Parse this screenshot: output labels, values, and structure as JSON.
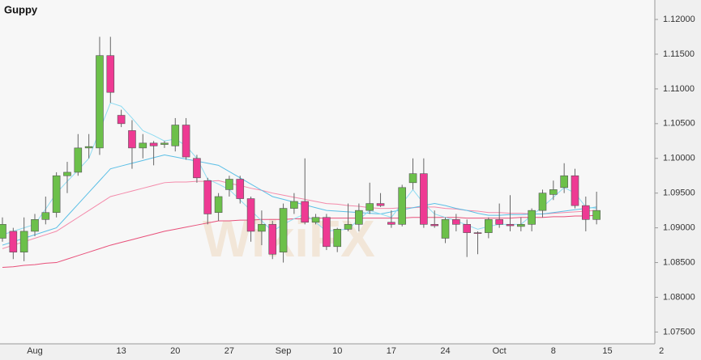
{
  "chart_data": {
    "type": "candlestick",
    "title": "Guppy",
    "watermark": "WikiFX",
    "categories": [
      null,
      null,
      null,
      "Aug",
      null,
      null,
      null,
      null,
      null,
      null,
      null,
      "13",
      null,
      null,
      null,
      null,
      "20",
      null,
      null,
      null,
      null,
      "27",
      null,
      null,
      null,
      null,
      "Sep",
      null,
      null,
      null,
      null,
      "10",
      null,
      null,
      null,
      null,
      "17",
      null,
      null,
      null,
      null,
      "24",
      null,
      null,
      null,
      null,
      "Oct",
      null,
      null,
      null,
      null,
      "8",
      null,
      null,
      null,
      null,
      "15",
      null,
      null,
      null,
      null,
      "2"
    ],
    "open": [
      1.0885,
      1.0895,
      1.0865,
      1.0895,
      1.0912,
      1.0922,
      1.0975,
      1.098,
      1.1015,
      1.1015,
      1.1148,
      1.1062,
      1.104,
      1.1015,
      1.1022,
      1.102,
      1.1018,
      1.1048,
      1.1,
      1.0968,
      1.0922,
      1.0955,
      1.097,
      1.0942,
      1.0895,
      1.0905,
      1.0865,
      1.0928,
      1.0938,
      1.0908,
      1.0915,
      1.0873,
      1.0898,
      1.0905,
      1.0925,
      1.0935,
      1.0908,
      1.0905,
      1.0965,
      1.0978,
      1.0905,
      1.0885,
      1.0912,
      1.0905,
      1.0893,
      1.0893,
      1.0912,
      1.0905,
      1.0902,
      1.0905,
      1.0925,
      1.0948,
      1.0958,
      1.0975,
      1.0932,
      1.0912,
      null,
      null,
      null,
      null,
      null,
      null
    ],
    "high": [
      1.0915,
      1.09,
      1.0915,
      1.092,
      1.0945,
      1.098,
      1.0995,
      1.1035,
      1.1035,
      1.1175,
      1.1175,
      1.107,
      1.1055,
      1.1035,
      1.1025,
      1.1025,
      1.1058,
      1.1058,
      1.1005,
      1.0972,
      1.095,
      1.0975,
      1.0975,
      1.0945,
      1.0925,
      1.091,
      1.0935,
      1.095,
      1.1,
      1.092,
      1.092,
      1.09,
      1.0935,
      1.0935,
      1.0965,
      1.095,
      1.0925,
      1.0962,
      1.1,
      1.1,
      1.0925,
      1.0915,
      1.092,
      1.0912,
      1.0895,
      1.0915,
      1.0935,
      1.0947,
      1.0915,
      1.0928,
      1.0955,
      1.0968,
      1.0993,
      1.0985,
      1.0945,
      1.0952,
      null,
      null,
      null,
      null,
      null,
      null
    ],
    "low": [
      1.088,
      1.0855,
      1.0852,
      1.0888,
      1.0905,
      1.0915,
      1.095,
      1.0975,
      1.1,
      1.1005,
      1.108,
      1.1045,
      1.0985,
      1.1,
      1.099,
      1.1015,
      1.101,
      1.0998,
      1.0965,
      1.0905,
      1.091,
      1.0945,
      1.0935,
      1.088,
      1.0875,
      1.0855,
      1.085,
      1.092,
      1.0905,
      1.0905,
      1.0868,
      1.0865,
      1.0895,
      1.0895,
      1.092,
      1.093,
      1.09,
      1.0902,
      1.0955,
      1.09,
      1.09,
      1.0878,
      1.0895,
      1.0858,
      1.0862,
      1.0885,
      1.09,
      1.0895,
      1.0895,
      1.0895,
      1.0915,
      1.094,
      1.095,
      1.0928,
      1.0895,
      1.0905,
      null,
      null,
      null,
      null,
      null,
      null
    ],
    "close": [
      1.0905,
      1.0865,
      1.0895,
      1.0912,
      1.0922,
      1.0975,
      1.098,
      1.1015,
      1.1017,
      1.1148,
      1.1095,
      1.105,
      1.1015,
      1.1022,
      1.1018,
      1.1022,
      1.1048,
      1.1002,
      1.0972,
      1.092,
      1.0945,
      1.097,
      1.0942,
      1.0895,
      1.0905,
      1.0862,
      1.0928,
      1.0938,
      1.0908,
      1.0915,
      1.0873,
      1.0898,
      1.0905,
      1.0925,
      1.0935,
      1.0932,
      1.0905,
      1.0958,
      1.0978,
      1.0905,
      1.0903,
      1.0912,
      1.0905,
      1.0893,
      1.0892,
      1.0912,
      1.0905,
      1.0903,
      1.0905,
      1.0925,
      1.095,
      1.0955,
      1.0975,
      1.0932,
      1.0912,
      1.0925,
      null,
      null,
      null,
      null,
      null,
      null
    ],
    "up_color": "#6cc04a",
    "down_color": "#ee3a93",
    "wick_color": "#666666",
    "series": [
      {
        "color": "#e8507a",
        "values": [
          1.0843,
          1.0844,
          1.0846,
          1.0847,
          1.0849,
          1.085,
          1.0855,
          1.086,
          1.0865,
          1.087,
          1.0875,
          1.0879,
          1.0883,
          1.0887,
          1.0891,
          1.0895,
          1.0898,
          1.0901,
          1.0904,
          1.0907,
          1.091,
          1.091,
          1.0911,
          1.0911,
          1.0912,
          1.0912,
          1.0912,
          1.0913,
          1.0913,
          1.0914,
          1.0914,
          1.0914,
          1.0914,
          1.0914,
          1.0914,
          1.0914,
          1.0914,
          1.0914,
          1.0915,
          1.0915,
          1.0915,
          1.0915,
          1.0915,
          1.0914,
          1.0914,
          1.0914,
          1.0914,
          1.0914,
          1.0915,
          1.0915,
          1.0915,
          1.0916,
          1.0916,
          1.0917,
          1.0917,
          1.0918,
          null,
          null,
          null,
          null,
          null,
          null
        ]
      },
      {
        "color": "#f48aaa",
        "values": [
          1.087,
          1.0875,
          1.088,
          1.0885,
          1.089,
          1.0895,
          1.0905,
          1.0915,
          1.0925,
          1.0935,
          1.0945,
          1.0949,
          1.0953,
          1.0957,
          1.0961,
          1.0965,
          1.0966,
          1.0966,
          1.0967,
          1.0967,
          1.0968,
          1.0964,
          1.0961,
          1.0957,
          1.0954,
          1.095,
          1.0947,
          1.0944,
          1.0941,
          1.0938,
          1.0935,
          1.0934,
          1.0932,
          1.0931,
          1.0929,
          1.0928,
          1.0928,
          1.0929,
          1.0929,
          1.093,
          1.093,
          1.0928,
          1.0927,
          1.0925,
          1.0924,
          1.0922,
          1.0922,
          1.0921,
          1.0921,
          1.092,
          1.092,
          1.0921,
          1.0922,
          1.0923,
          1.0924,
          1.0925,
          null,
          null,
          null,
          null,
          null,
          null
        ]
      },
      {
        "color": "#5bbfe6",
        "values": [
          1.0875,
          1.088,
          1.0885,
          1.089,
          1.0895,
          1.09,
          1.0917,
          1.0934,
          1.0951,
          1.0968,
          1.0985,
          1.0989,
          1.0993,
          1.0997,
          1.1001,
          1.1005,
          1.1002,
          1.0999,
          1.0996,
          1.0993,
          1.099,
          1.0981,
          1.0972,
          1.0963,
          1.0954,
          1.0945,
          1.0941,
          1.0937,
          1.0933,
          1.0929,
          1.0925,
          1.0924,
          1.0923,
          1.0922,
          1.0921,
          1.092,
          1.0923,
          1.0926,
          1.0929,
          1.0932,
          1.0935,
          1.0932,
          1.0928,
          1.0925,
          1.0921,
          1.0918,
          1.0918,
          1.0919,
          1.0919,
          1.092,
          1.092,
          1.0922,
          1.0924,
          1.0926,
          1.0928,
          1.093,
          null,
          null,
          null,
          null,
          null,
          null
        ]
      },
      {
        "color": "#8fdcf2",
        "values": [
          1.089,
          1.0895,
          1.09,
          1.0905,
          1.0927,
          1.095,
          1.0967,
          1.0983,
          1.1,
          1.104,
          1.108,
          1.1075,
          1.1058,
          1.104,
          1.1033,
          1.1025,
          1.1028,
          1.1018,
          1.1,
          1.097,
          1.0963,
          1.0955,
          1.094,
          1.0925,
          1.091,
          1.0895,
          1.0905,
          1.0913,
          1.092,
          1.0908,
          1.0895,
          1.0897,
          1.0898,
          1.0912,
          1.0925,
          1.092,
          1.0915,
          1.0935,
          1.0955,
          1.0935,
          1.092,
          1.0915,
          1.091,
          1.0904,
          1.0898,
          1.0902,
          1.0905,
          1.0905,
          1.0905,
          1.0918,
          1.093,
          1.0944,
          1.0958,
          1.095,
          1.093,
          1.0928,
          null,
          null,
          null,
          null,
          null,
          null
        ]
      }
    ],
    "ylim": [
      1.0733,
      1.1228
    ],
    "yticks": [
      {
        "value": 1.075,
        "label": "1.07500"
      },
      {
        "value": 1.08,
        "label": "1.08000"
      },
      {
        "value": 1.085,
        "label": "1.08500"
      },
      {
        "value": 1.09,
        "label": "1.09000"
      },
      {
        "value": 1.095,
        "label": "1.09500"
      },
      {
        "value": 1.1,
        "label": "1.10000"
      },
      {
        "value": 1.105,
        "label": "1.10500"
      },
      {
        "value": 1.11,
        "label": "1.11000"
      },
      {
        "value": 1.115,
        "label": "1.11500"
      },
      {
        "value": 1.12,
        "label": "1.12000"
      }
    ],
    "grid": false
  }
}
